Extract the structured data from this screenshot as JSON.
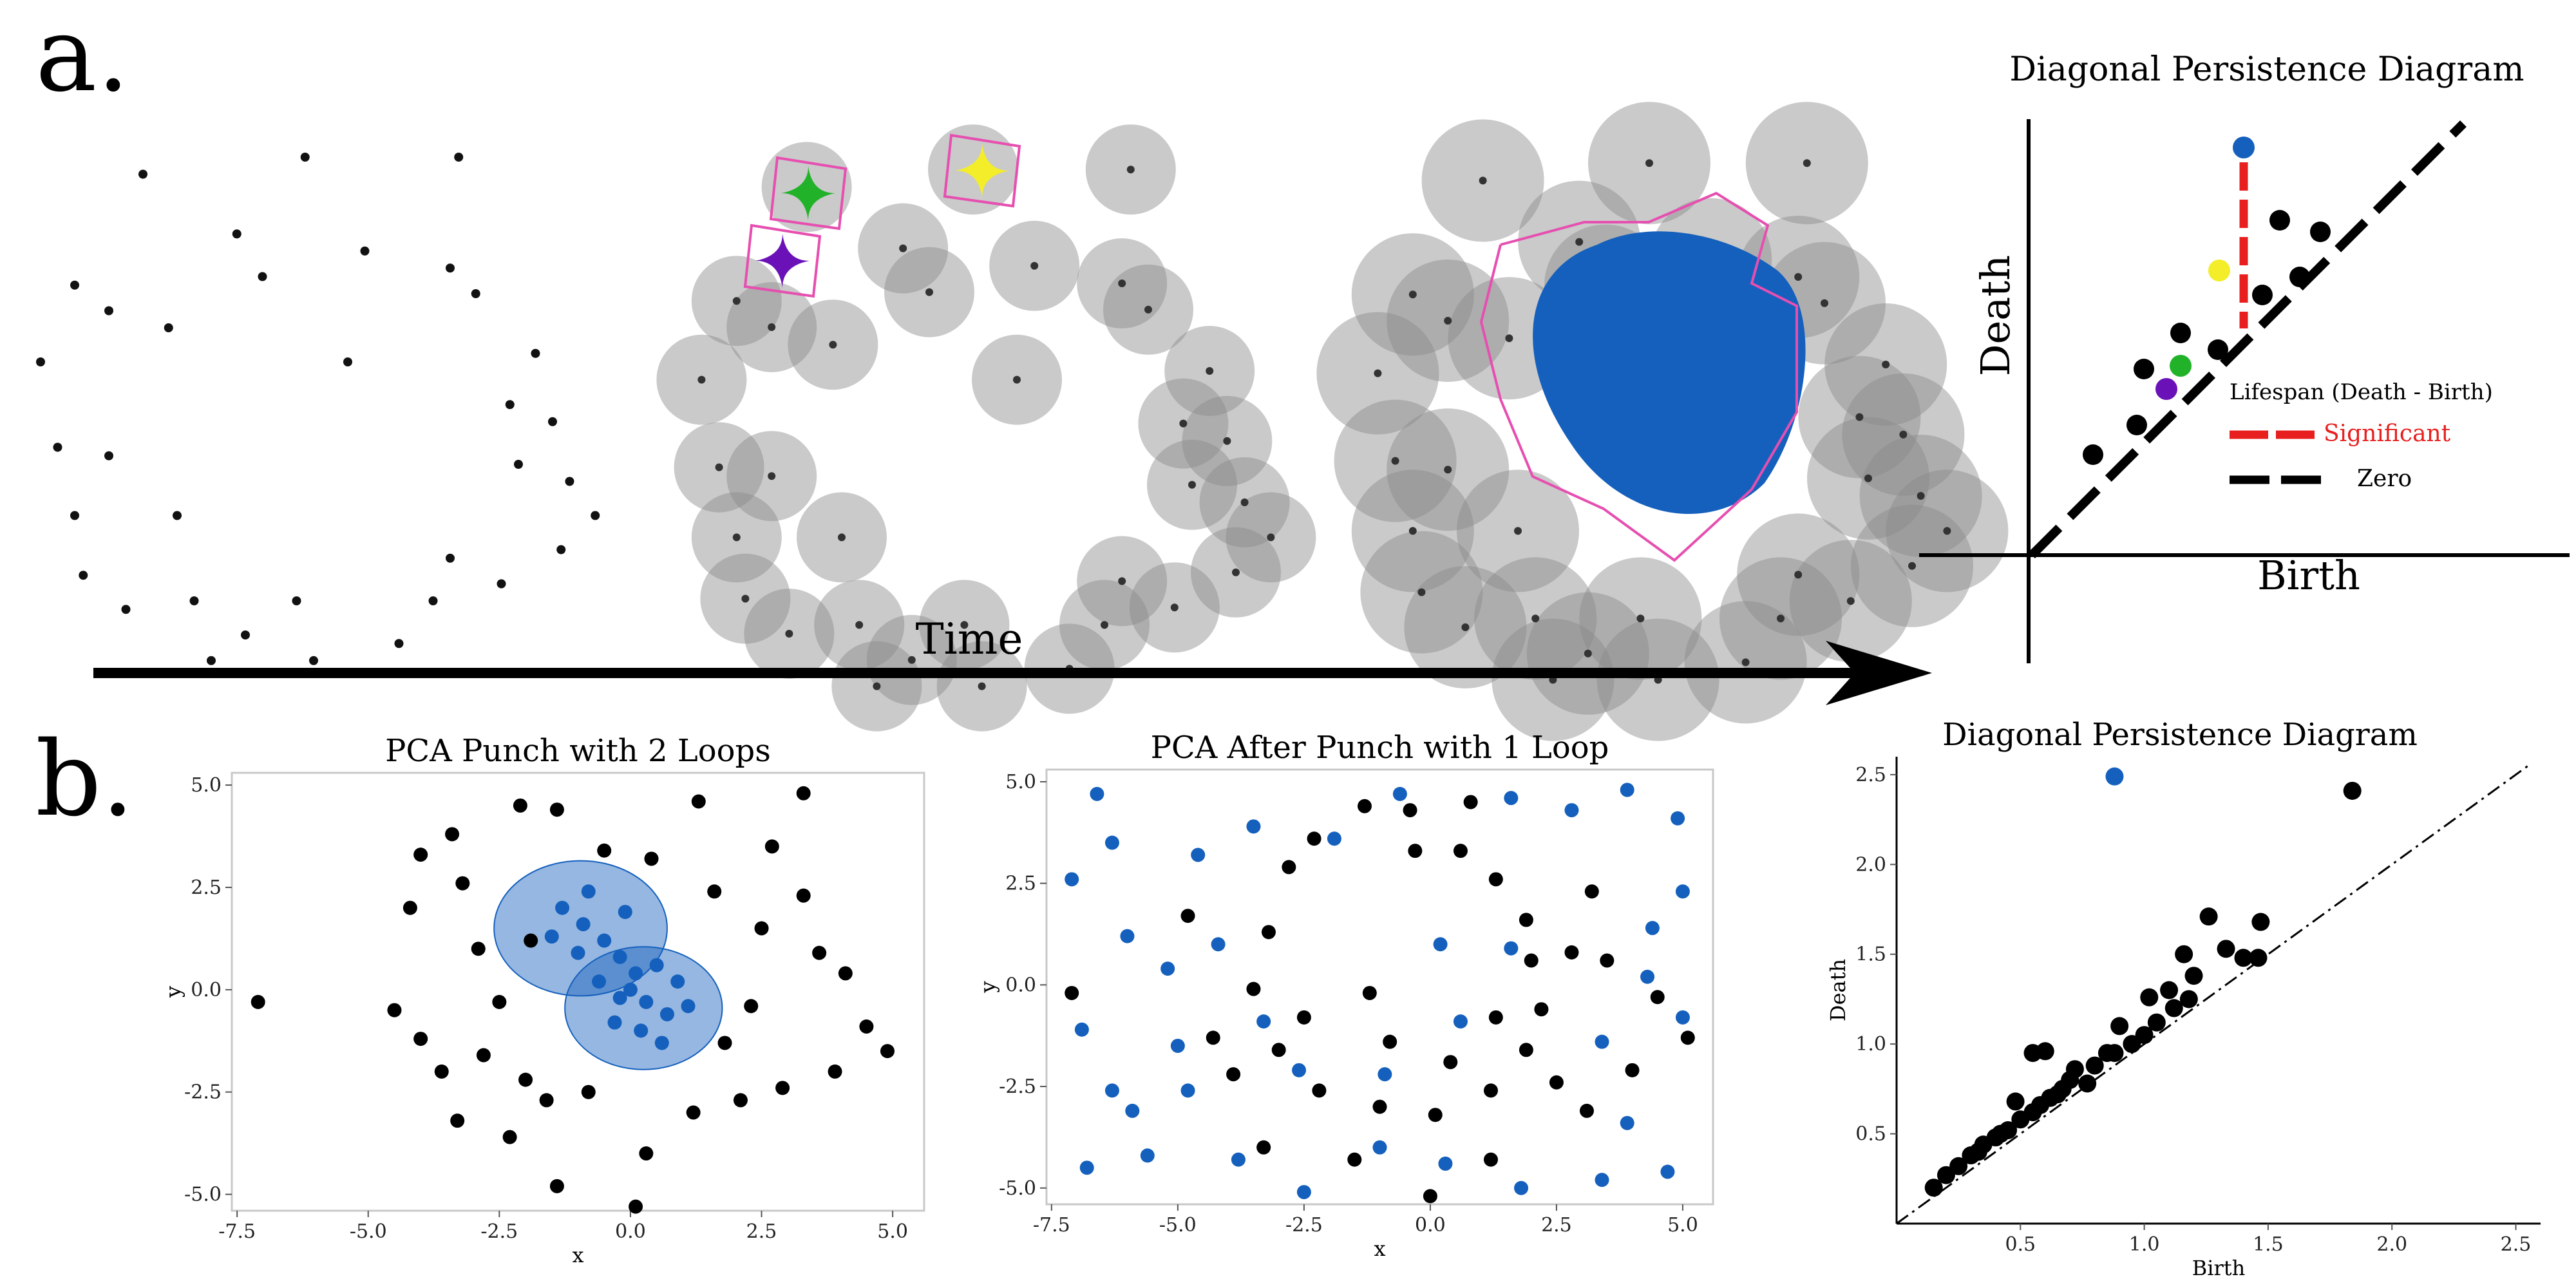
{
  "panel_a": {
    "label": "a.",
    "time_label": "Time",
    "diagram": {
      "title": "Diagonal Persistence Diagram",
      "xlabel": "Birth",
      "ylabel": "Death",
      "legend": {
        "title": "Lifespan (Death - Birth)",
        "significant": "Significant",
        "zero": "Zero"
      }
    },
    "colors": {
      "blue": "#1560bd",
      "green": "#22b22a",
      "purple": "#6a12b8",
      "yellow": "#f3ee29",
      "pink": "#e64fb0",
      "red": "#e81f1f"
    }
  },
  "panel_b": {
    "label": "b."
  },
  "chart_data": [
    {
      "type": "scatter",
      "title": "PCA Punch with 2 Loops",
      "xlabel": "x",
      "ylabel": "y",
      "xlim": [
        -7.6,
        5.6
      ],
      "ylim": [
        -5.4,
        5.3
      ],
      "xticks": [
        -7.5,
        -5.0,
        -2.5,
        0.0,
        2.5,
        5.0
      ],
      "yticks": [
        -5.0,
        -2.5,
        0.0,
        2.5,
        5.0
      ],
      "series": [
        {
          "color": "#000000",
          "points": [
            [
              -7.1,
              -0.3
            ],
            [
              -3.4,
              3.8
            ],
            [
              -3.2,
              2.6
            ],
            [
              -2.9,
              1.0
            ],
            [
              -2.5,
              -0.3
            ],
            [
              -2.8,
              -1.6
            ],
            [
              -3.3,
              -3.2
            ],
            [
              -2.3,
              -3.6
            ],
            [
              -1.6,
              -2.7
            ],
            [
              -1.4,
              -4.8
            ],
            [
              0.1,
              -5.3
            ],
            [
              0.3,
              -4.0
            ],
            [
              1.2,
              -3.0
            ],
            [
              2.1,
              -2.7
            ],
            [
              2.9,
              -2.4
            ],
            [
              3.9,
              -2.0
            ],
            [
              4.5,
              -0.9
            ],
            [
              4.9,
              -1.5
            ],
            [
              3.6,
              0.9
            ],
            [
              4.1,
              0.4
            ],
            [
              3.3,
              2.3
            ],
            [
              2.7,
              3.5
            ],
            [
              3.3,
              4.8
            ],
            [
              1.3,
              4.6
            ],
            [
              0.4,
              3.2
            ],
            [
              -0.5,
              3.4
            ],
            [
              -1.4,
              4.4
            ],
            [
              -2.1,
              4.5
            ],
            [
              -4.0,
              3.3
            ],
            [
              -4.2,
              2.0
            ],
            [
              -4.5,
              -0.5
            ],
            [
              -4.0,
              -1.2
            ],
            [
              -3.6,
              -2.0
            ],
            [
              -2.0,
              -2.2
            ],
            [
              -0.8,
              -2.5
            ],
            [
              1.8,
              -1.3
            ],
            [
              2.3,
              -0.4
            ],
            [
              2.5,
              1.5
            ],
            [
              1.6,
              2.4
            ],
            [
              -1.9,
              1.2
            ]
          ]
        },
        {
          "color": "#1560bd",
          "points": [
            [
              -1.3,
              2.0
            ],
            [
              -0.9,
              1.6
            ],
            [
              -0.5,
              1.2
            ],
            [
              -0.2,
              0.8
            ],
            [
              0.1,
              0.4
            ],
            [
              -1.0,
              0.9
            ],
            [
              -0.6,
              0.2
            ],
            [
              -0.2,
              -0.2
            ],
            [
              0.3,
              -0.3
            ],
            [
              0.7,
              -0.6
            ],
            [
              0.2,
              -1.0
            ],
            [
              -0.3,
              -0.8
            ],
            [
              0.9,
              0.2
            ],
            [
              1.1,
              -0.4
            ],
            [
              0.5,
              0.6
            ],
            [
              -1.5,
              1.3
            ],
            [
              -0.8,
              2.4
            ],
            [
              -0.1,
              1.9
            ],
            [
              0.6,
              -1.3
            ],
            [
              0.0,
              0.0
            ]
          ]
        }
      ],
      "shaded_regions": [
        {
          "center": [
            -0.95,
            1.5
          ],
          "radius": 1.65
        },
        {
          "center": [
            0.25,
            -0.45
          ],
          "radius": 1.5
        }
      ]
    },
    {
      "type": "scatter",
      "title": "PCA After Punch with 1 Loop",
      "xlabel": "x",
      "ylabel": "y",
      "xlim": [
        -7.6,
        5.6
      ],
      "ylim": [
        -5.4,
        5.3
      ],
      "xticks": [
        -7.5,
        -5.0,
        -2.5,
        0.0,
        2.5,
        5.0
      ],
      "yticks": [
        -5.0,
        -2.5,
        0.0,
        2.5,
        5.0
      ],
      "series": [
        {
          "color": "#000000",
          "points": [
            [
              -3.5,
              -0.1
            ],
            [
              -3.2,
              1.3
            ],
            [
              -2.8,
              2.9
            ],
            [
              -2.3,
              3.6
            ],
            [
              -1.3,
              4.4
            ],
            [
              -0.3,
              3.3
            ],
            [
              0.6,
              3.3
            ],
            [
              1.3,
              2.6
            ],
            [
              1.9,
              1.6
            ],
            [
              2.0,
              0.6
            ],
            [
              2.2,
              -0.6
            ],
            [
              1.9,
              -1.6
            ],
            [
              1.2,
              -2.6
            ],
            [
              0.1,
              -3.2
            ],
            [
              -1.0,
              -3.0
            ],
            [
              -2.2,
              -2.6
            ],
            [
              -3.0,
              -1.6
            ],
            [
              -1.2,
              -0.2
            ],
            [
              -0.8,
              -1.4
            ],
            [
              0.4,
              -1.9
            ],
            [
              1.3,
              -0.8
            ],
            [
              2.5,
              -2.4
            ],
            [
              3.1,
              -3.1
            ],
            [
              4.0,
              -2.1
            ],
            [
              4.5,
              -0.3
            ],
            [
              5.1,
              -1.3
            ],
            [
              -7.1,
              -0.2
            ],
            [
              -4.8,
              1.7
            ],
            [
              -4.3,
              -1.3
            ],
            [
              -3.9,
              -2.2
            ],
            [
              -3.3,
              -4.0
            ],
            [
              -1.5,
              -4.3
            ],
            [
              0.0,
              -5.2
            ],
            [
              1.2,
              -4.3
            ],
            [
              3.5,
              0.6
            ],
            [
              3.2,
              2.3
            ],
            [
              0.8,
              4.5
            ],
            [
              -0.4,
              4.3
            ],
            [
              2.8,
              0.8
            ],
            [
              -2.5,
              -0.8
            ]
          ]
        },
        {
          "color": "#1560bd",
          "points": [
            [
              -6.6,
              4.7
            ],
            [
              -6.3,
              3.5
            ],
            [
              -7.1,
              2.6
            ],
            [
              -6.0,
              1.2
            ],
            [
              -6.9,
              -1.1
            ],
            [
              -6.3,
              -2.6
            ],
            [
              -6.8,
              -4.5
            ],
            [
              -5.6,
              -4.2
            ],
            [
              -5.9,
              -3.1
            ],
            [
              -4.8,
              -2.6
            ],
            [
              -5.2,
              0.4
            ],
            [
              -4.6,
              3.2
            ],
            [
              -3.5,
              3.9
            ],
            [
              -1.9,
              3.6
            ],
            [
              -0.6,
              4.7
            ],
            [
              1.6,
              4.6
            ],
            [
              2.8,
              4.3
            ],
            [
              3.9,
              4.8
            ],
            [
              4.9,
              4.1
            ],
            [
              5.0,
              2.3
            ],
            [
              4.4,
              1.4
            ],
            [
              5.0,
              -0.8
            ],
            [
              3.9,
              -3.4
            ],
            [
              4.7,
              -4.6
            ],
            [
              3.4,
              -4.8
            ],
            [
              1.8,
              -5.0
            ],
            [
              0.3,
              -4.4
            ],
            [
              -1.0,
              -4.0
            ],
            [
              -2.5,
              -5.1
            ],
            [
              -3.8,
              -4.3
            ],
            [
              -2.6,
              -2.1
            ],
            [
              -0.9,
              -2.2
            ],
            [
              0.6,
              -0.9
            ],
            [
              1.6,
              0.9
            ],
            [
              3.4,
              -1.4
            ],
            [
              4.3,
              0.2
            ],
            [
              -4.2,
              1.0
            ],
            [
              -3.3,
              -0.9
            ],
            [
              0.2,
              1.0
            ],
            [
              -5.0,
              -1.5
            ]
          ]
        }
      ]
    },
    {
      "type": "scatter",
      "title": "Diagonal Persistence Diagram",
      "xlabel": "Birth",
      "ylabel": "Death",
      "xlim": [
        0.0,
        2.6
      ],
      "ylim": [
        0.0,
        2.6
      ],
      "xticks": [
        0.5,
        1.0,
        1.5,
        2.0,
        2.5
      ],
      "yticks": [
        0.5,
        1.0,
        1.5,
        2.0,
        2.5
      ],
      "diagonal": true,
      "series": [
        {
          "color": "#000000",
          "points": [
            [
              1.84,
              2.41
            ],
            [
              1.47,
              1.68
            ],
            [
              1.26,
              1.71
            ],
            [
              1.33,
              1.53
            ],
            [
              1.4,
              1.48
            ],
            [
              1.46,
              1.48
            ],
            [
              1.16,
              1.5
            ],
            [
              1.2,
              1.38
            ],
            [
              1.02,
              1.26
            ],
            [
              1.1,
              1.3
            ],
            [
              1.18,
              1.25
            ],
            [
              1.05,
              1.12
            ],
            [
              0.9,
              1.1
            ],
            [
              0.95,
              1.0
            ],
            [
              0.85,
              0.95
            ],
            [
              0.8,
              0.88
            ],
            [
              0.7,
              0.8
            ],
            [
              0.65,
              0.72
            ],
            [
              0.6,
              0.96
            ],
            [
              0.55,
              0.95
            ],
            [
              0.62,
              0.7
            ],
            [
              0.55,
              0.62
            ],
            [
              0.5,
              0.58
            ],
            [
              0.45,
              0.52
            ],
            [
              0.4,
              0.48
            ],
            [
              0.35,
              0.44
            ],
            [
              0.3,
              0.38
            ],
            [
              0.25,
              0.32
            ],
            [
              0.2,
              0.27
            ],
            [
              0.15,
              0.2
            ],
            [
              0.48,
              0.68
            ],
            [
              0.72,
              0.86
            ],
            [
              0.77,
              0.78
            ],
            [
              1.0,
              1.05
            ],
            [
              1.12,
              1.2
            ],
            [
              0.33,
              0.4
            ],
            [
              0.42,
              0.5
            ],
            [
              0.58,
              0.66
            ],
            [
              0.67,
              0.75
            ],
            [
              0.88,
              0.95
            ]
          ]
        },
        {
          "color": "#1560bd",
          "points": [
            [
              0.88,
              2.49
            ]
          ]
        }
      ]
    }
  ]
}
